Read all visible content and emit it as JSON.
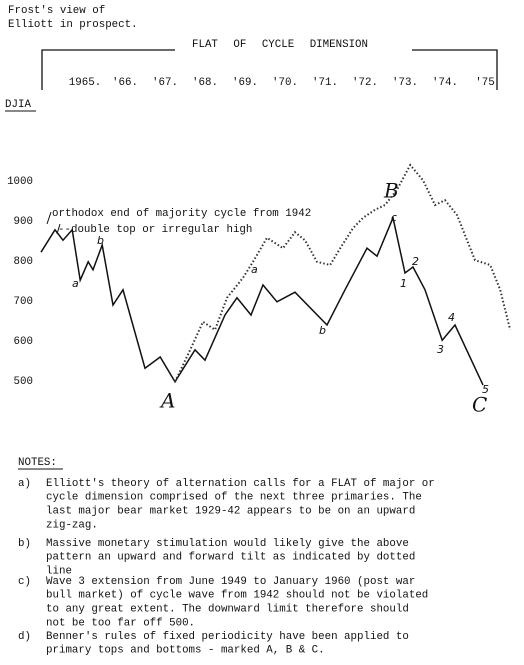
{
  "header": {
    "note_lines": [
      "Frost's view of",
      "Elliott in prospect."
    ],
    "banner": "FLAT OF CYCLE DIMENSION"
  },
  "chart_data": {
    "type": "line",
    "ylabel": "DJIA",
    "xlim": [
      1963.75,
      1975.75
    ],
    "ylim": [
      450,
      1050
    ],
    "xticks": [
      {
        "value": 1965,
        "label": "1965."
      },
      {
        "value": 1966,
        "label": "'66."
      },
      {
        "value": 1967,
        "label": "'67."
      },
      {
        "value": 1968,
        "label": "'68."
      },
      {
        "value": 1969,
        "label": "'69."
      },
      {
        "value": 1970,
        "label": "'70."
      },
      {
        "value": 1971,
        "label": "'71."
      },
      {
        "value": 1972,
        "label": "'72."
      },
      {
        "value": 1973,
        "label": "'73."
      },
      {
        "value": 1974,
        "label": "'74."
      },
      {
        "value": 1975,
        "label": "'75"
      }
    ],
    "yticks": [
      500,
      600,
      700,
      800,
      900,
      1000
    ],
    "series": [
      {
        "color": "#111111",
        "style": "solid",
        "x": [
          1963.9,
          1964.25,
          1964.45,
          1964.68,
          1964.88,
          1965.08,
          1965.2,
          1965.43,
          1965.7,
          1965.95,
          1966.5,
          1966.88,
          1967.25,
          1967.75,
          1968.0,
          1968.5,
          1968.8,
          1969.15,
          1969.45,
          1969.8,
          1970.25,
          1971.05,
          1971.5,
          1972.05,
          1972.3,
          1972.7,
          1973.0,
          1973.2,
          1973.5,
          1973.93,
          1974.25,
          1974.95
        ],
        "values": [
          822,
          878,
          852,
          878,
          752,
          798,
          778,
          840,
          690,
          728,
          532,
          560,
          498,
          578,
          552,
          665,
          708,
          665,
          740,
          698,
          722,
          640,
          728,
          832,
          812,
          908,
          770,
          785,
          728,
          602,
          640,
          490
        ]
      },
      {
        "color": "#333333",
        "style": "dotted",
        "x": [
          1967.25,
          1967.63,
          1967.95,
          1968.25,
          1968.55,
          1968.95,
          1969.2,
          1969.55,
          1969.95,
          1970.25,
          1970.5,
          1970.8,
          1971.13,
          1971.38,
          1971.7,
          1971.95,
          1972.25,
          1972.5,
          1972.8,
          1973.13,
          1973.45,
          1973.75,
          1974.0,
          1974.3,
          1974.75,
          1975.13,
          1975.38,
          1975.63
        ],
        "values": [
          498,
          578,
          648,
          628,
          708,
          758,
          798,
          858,
          832,
          872,
          852,
          798,
          790,
          832,
          882,
          908,
          928,
          940,
          978,
          1040,
          1002,
          940,
          952,
          915,
          802,
          790,
          728,
          628
        ]
      }
    ],
    "annotations": [
      "orthodox end of majority cycle from 1942",
      "--double top or irregular high",
      "a",
      "b",
      "A",
      "a",
      "b",
      "B",
      "c",
      "1",
      "2",
      "3",
      "4",
      "5",
      "C"
    ]
  },
  "notes": {
    "heading": "NOTES:",
    "items": [
      {
        "label": "a)",
        "lines": [
          "Elliott's theory of alternation calls for a FLAT of major or",
          "cycle dimension comprised of the next three primaries.  The",
          "last major bear market 1929-42 appears to be on an upward",
          "zig-zag."
        ]
      },
      {
        "label": "b)",
        "lines": [
          "Massive monetary stimulation would likely give the above",
          "pattern an upward and forward tilt as indicated by dotted",
          "line"
        ]
      },
      {
        "label": "c)",
        "lines": [
          "Wave 3 extension from June 1949 to January 1960 (post war",
          "bull market) of cycle wave from 1942 should not be violated",
          "to any great extent.  The downward limit therefore should",
          "not be too far off 500."
        ]
      },
      {
        "label": "d)",
        "lines": [
          "Benner's rules of fixed periodicity have been applied to",
          "primary tops and bottoms - marked A, B & C."
        ]
      }
    ]
  }
}
